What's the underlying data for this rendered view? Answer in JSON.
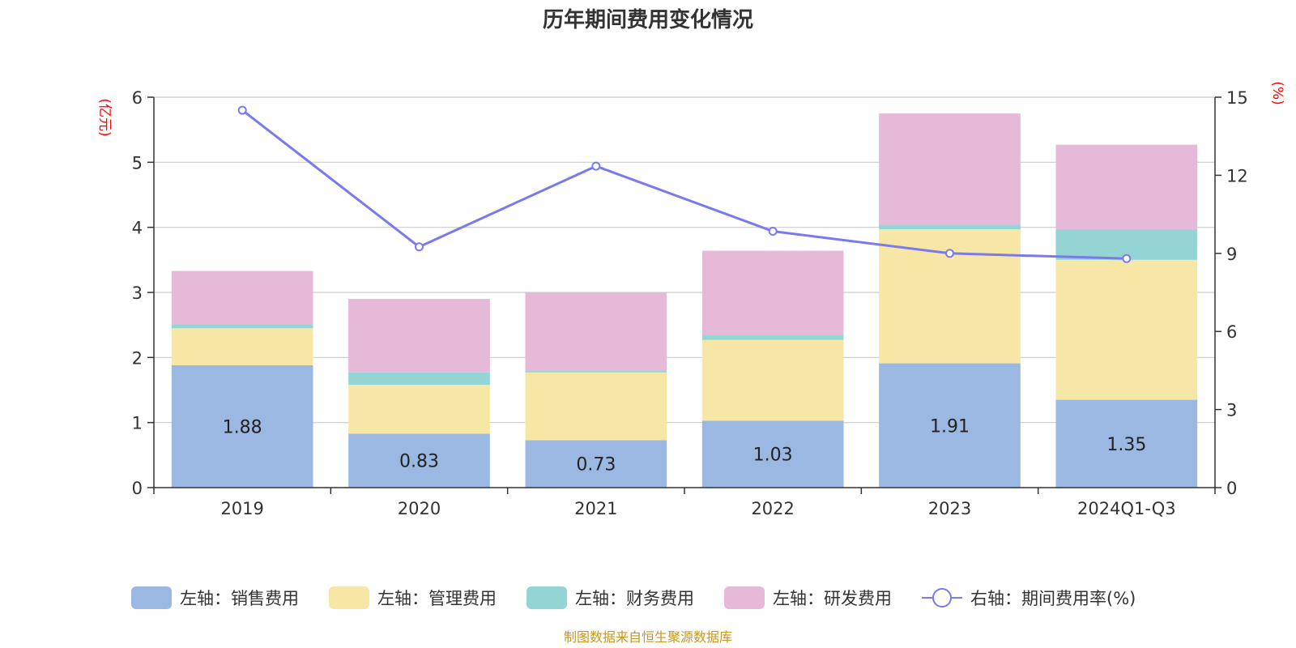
{
  "chart_data": {
    "type": "bar",
    "stacked": true,
    "title": "历年期间费用变化情况",
    "categories": [
      "2019",
      "2020",
      "2021",
      "2022",
      "2023",
      "2024Q1-Q3"
    ],
    "left_axis": {
      "unit": "(亿元)",
      "min": 0,
      "max": 6,
      "ticks": [
        "0",
        "1",
        "2",
        "3",
        "4",
        "5",
        "6"
      ]
    },
    "right_axis": {
      "unit": "(%)",
      "min": 0,
      "max": 15,
      "ticks": [
        "0",
        "3",
        "6",
        "9",
        "12",
        "15"
      ]
    },
    "series": [
      {
        "name": "左轴：销售费用",
        "axis": "left",
        "color": "#9bb8e2",
        "values": [
          1.88,
          0.83,
          0.73,
          1.03,
          1.91,
          1.35
        ],
        "labels": [
          "1.88",
          "0.83",
          "0.73",
          "1.03",
          "1.91",
          "1.35"
        ]
      },
      {
        "name": "左轴：管理费用",
        "axis": "left",
        "color": "#f7e7a6",
        "values": [
          0.57,
          0.75,
          1.04,
          1.24,
          2.06,
          2.15
        ]
      },
      {
        "name": "左轴：财务费用",
        "axis": "left",
        "color": "#95d4d4",
        "values": [
          0.06,
          0.19,
          0.03,
          0.08,
          0.07,
          0.47
        ]
      },
      {
        "name": "左轴：研发费用",
        "axis": "left",
        "color": "#e7b9d9",
        "values": [
          0.82,
          1.13,
          1.2,
          1.29,
          1.71,
          1.3
        ]
      },
      {
        "name": "右轴：期间费用率(%)",
        "axis": "right",
        "type": "line",
        "color": "#7a7aed",
        "values": [
          14.5,
          9.25,
          12.35,
          9.85,
          9.0,
          8.8
        ]
      }
    ],
    "grid": true,
    "legend_position": "bottom"
  },
  "source": "制图数据来自恒生聚源数据库"
}
